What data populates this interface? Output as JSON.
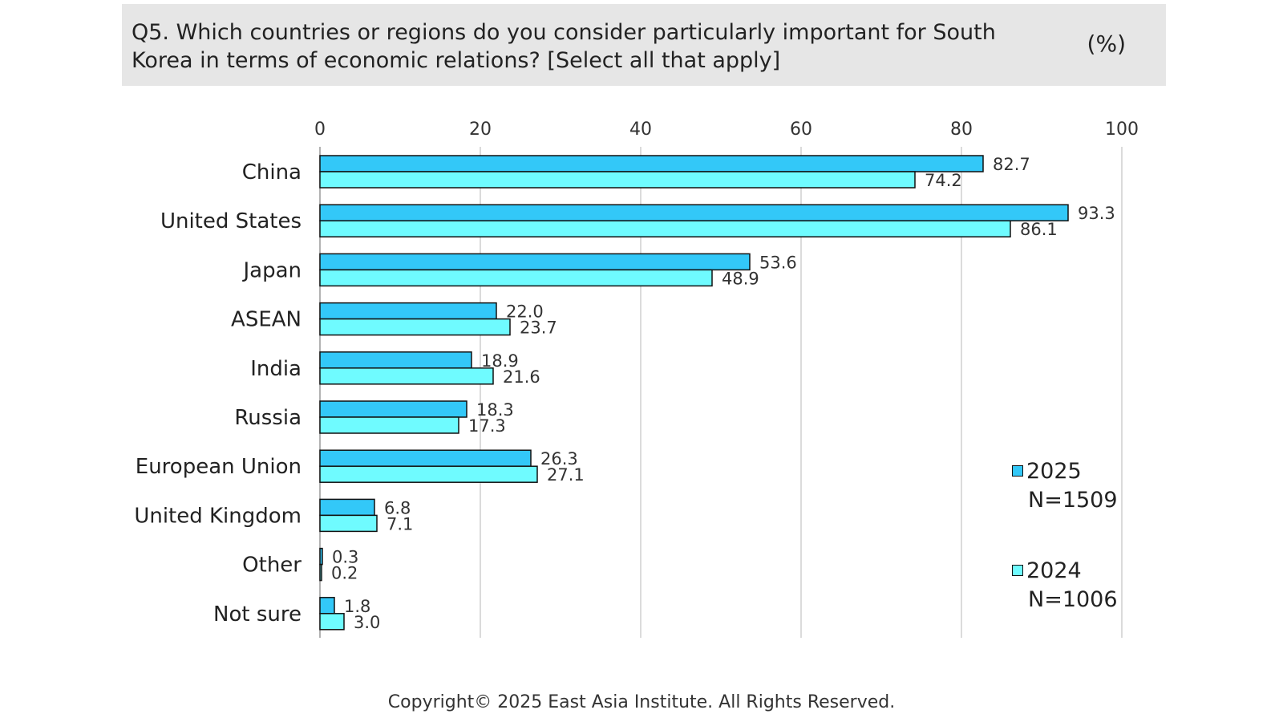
{
  "header": {
    "title": "Q5. Which countries or regions do you consider particularly important for South Korea in terms of economic relations? [Select all that apply]",
    "unit": "(%)"
  },
  "footer": {
    "copyright": "Copyright© 2025 East Asia Institute. All Rights Reserved."
  },
  "legend": [
    {
      "name": "2025",
      "n": "N=1509"
    },
    {
      "name": "2024",
      "n": "N=1006"
    }
  ],
  "chart_data": {
    "type": "bar",
    "orientation": "horizontal",
    "categories": [
      "China",
      "United States",
      "Japan",
      "ASEAN",
      "India",
      "Russia",
      "European Union",
      "United Kingdom",
      "Other",
      "Not sure"
    ],
    "series": [
      {
        "name": "2025",
        "color": "#33c8f8",
        "values": [
          82.7,
          93.3,
          53.6,
          22.0,
          18.9,
          18.3,
          26.3,
          6.8,
          0.3,
          1.8
        ]
      },
      {
        "name": "2024",
        "color": "#6ffbff",
        "values": [
          74.2,
          86.1,
          48.9,
          23.7,
          21.6,
          17.3,
          27.1,
          7.1,
          0.2,
          3.0
        ]
      }
    ],
    "value_labels": [
      [
        "82.7",
        "93.3",
        "53.6",
        "22.0",
        "18.9",
        "18.3",
        "26.3",
        "6.8",
        "0.3",
        "1.8"
      ],
      [
        "74.2",
        "86.1",
        "48.9",
        "23.7",
        "21.6",
        "17.3",
        "27.1",
        "7.1",
        "0.2",
        "3.0"
      ]
    ],
    "xticks": [
      "0",
      "20",
      "40",
      "60",
      "80",
      "100"
    ],
    "xlim": [
      0,
      100
    ],
    "xaxis_position": "top",
    "grid": true,
    "legend_position": "bottom-right"
  }
}
